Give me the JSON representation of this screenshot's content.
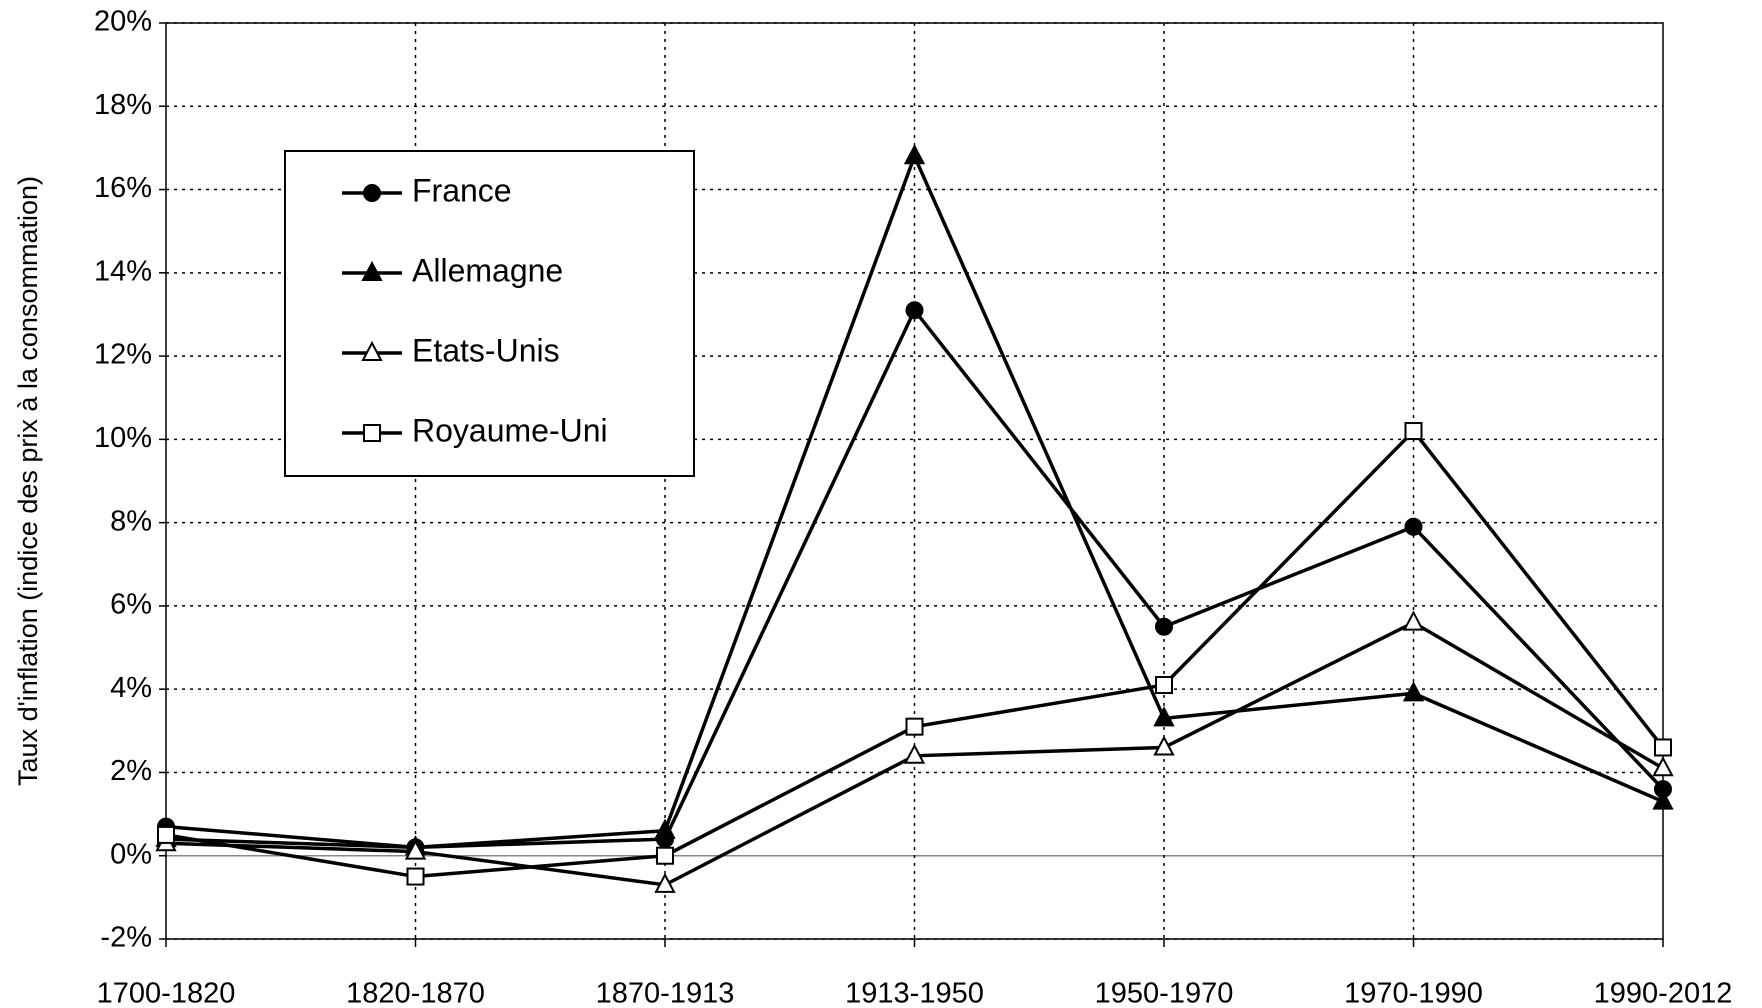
{
  "chart_data": {
    "type": "line",
    "ylabel": "Taux d'inflation (indice des prix à la consommation)",
    "categories": [
      "1700-1820",
      "1820-1870",
      "1870-1913",
      "1913-1950",
      "1950-1970",
      "1970-1990",
      "1990-2012"
    ],
    "series": [
      {
        "name": "France",
        "color": "#000000",
        "marker": "circle",
        "filled": true,
        "values": [
          0.7,
          0.2,
          0.4,
          13.1,
          5.5,
          7.9,
          1.6
        ]
      },
      {
        "name": "Allemagne",
        "color": "#000000",
        "marker": "triangle",
        "filled": true,
        "values": [
          0.4,
          0.2,
          0.6,
          16.8,
          3.3,
          3.9,
          1.3
        ]
      },
      {
        "name": "Etats-Unis",
        "color": "#000000",
        "marker": "triangle",
        "filled": false,
        "values": [
          0.3,
          0.1,
          -0.7,
          2.4,
          2.6,
          5.6,
          2.1
        ]
      },
      {
        "name": "Royaume-Uni",
        "color": "#000000",
        "marker": "square",
        "filled": false,
        "values": [
          0.5,
          -0.5,
          0.0,
          3.1,
          4.1,
          10.2,
          2.6
        ]
      }
    ],
    "ylim": [
      -2,
      20
    ],
    "yticks": [
      {
        "value": -2,
        "label": "-2%"
      },
      {
        "value": 0,
        "label": "0%"
      },
      {
        "value": 2,
        "label": "2%"
      },
      {
        "value": 4,
        "label": "4%"
      },
      {
        "value": 6,
        "label": "6%"
      },
      {
        "value": 8,
        "label": "8%"
      },
      {
        "value": 10,
        "label": "10%"
      },
      {
        "value": 12,
        "label": "12%"
      },
      {
        "value": 14,
        "label": "14%"
      },
      {
        "value": 16,
        "label": "16%"
      },
      {
        "value": 18,
        "label": "18%"
      },
      {
        "value": 20,
        "label": "20%"
      }
    ],
    "grid": true,
    "legend": "upper left"
  }
}
